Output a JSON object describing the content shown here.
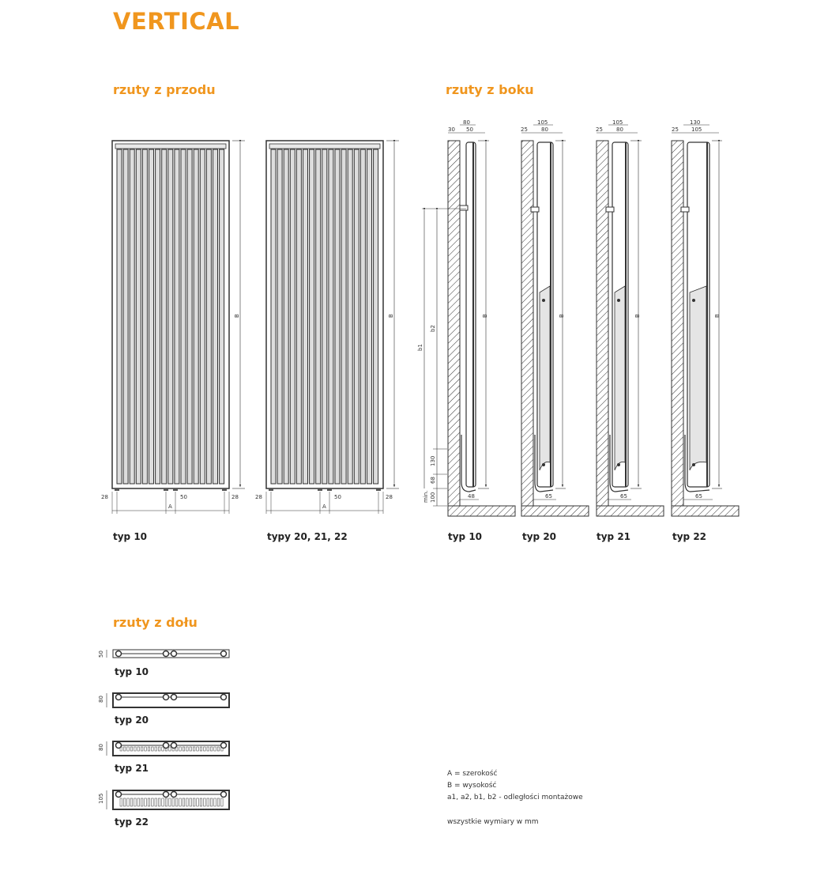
{
  "title": "VERTICAL",
  "accent_color": "#f0961e",
  "sections": {
    "front": "rzuty z przodu",
    "side": "rzuty z boku",
    "bottom": "rzuty z dołu"
  },
  "front_views": [
    {
      "label": "typ 10",
      "dims": {
        "left": "28",
        "center": "50",
        "right": "28",
        "width": "A",
        "height": "B"
      }
    },
    {
      "label": "typy 20, 21, 22",
      "dims": {
        "left": "28",
        "center": "50",
        "right": "28",
        "width": "A",
        "height": "B"
      }
    }
  ],
  "side_views": [
    {
      "label": "typ 10",
      "top_outer": "80",
      "top_wall": "30",
      "top_inner": "50",
      "bottom": "48",
      "height": "B"
    },
    {
      "label": "typ 20",
      "top_outer": "105",
      "top_wall": "25",
      "top_inner": "80",
      "bottom": "65",
      "height": "B"
    },
    {
      "label": "typ 21",
      "top_outer": "105",
      "top_wall": "25",
      "top_inner": "80",
      "bottom": "65",
      "height": "B"
    },
    {
      "label": "typ 22",
      "top_outer": "130",
      "top_wall": "25",
      "top_inner": "105",
      "bottom": "65",
      "height": "B"
    }
  ],
  "side_dims": {
    "b1": "b1",
    "b2": "b2",
    "d130": "130",
    "d68": "68",
    "min": "min.",
    "d100": "100"
  },
  "bottom_views": [
    {
      "label": "typ 10",
      "depth": "50"
    },
    {
      "label": "typ 20",
      "depth": "80"
    },
    {
      "label": "typ 21",
      "depth": "80"
    },
    {
      "label": "typ 22",
      "depth": "105"
    }
  ],
  "legend": {
    "a": "A = szerokość",
    "b": "B = wysokość",
    "mount": "a1, a2, b1, b2 - odległości montażowe",
    "units": "wszystkie wymiary w mm"
  }
}
